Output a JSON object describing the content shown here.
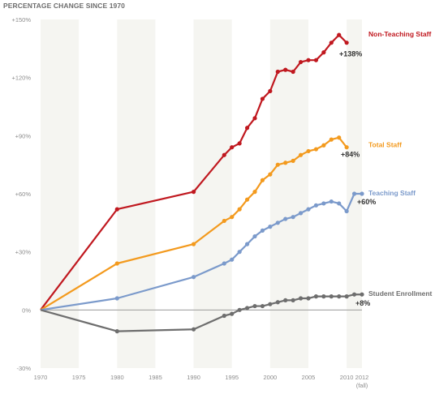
{
  "chart_data": {
    "type": "line",
    "title": "PERCENTAGE CHANGE SINCE 1970",
    "xlabel": "",
    "ylabel": "",
    "ylim": [
      -30,
      150
    ],
    "xlim": [
      1970,
      2012
    ],
    "grid": "alternating vertical bands every 5 years; zero line",
    "x_ticks": [
      "1970",
      "1975",
      "1980",
      "1985",
      "1990",
      "1995",
      "2000",
      "2005",
      "2010",
      "2012"
    ],
    "x_tick_note": "(fall)",
    "y_ticks": [
      "+150%",
      "+120%",
      "+90%",
      "+60%",
      "+30%",
      "0%",
      "-30%"
    ],
    "series": [
      {
        "name": "Non-Teaching Staff",
        "color": "#c0181f",
        "end_label": "+138%",
        "points": [
          [
            1970,
            0
          ],
          [
            1980,
            52
          ],
          [
            1990,
            61
          ],
          [
            1994,
            80
          ],
          [
            1995,
            84
          ],
          [
            1996,
            86
          ],
          [
            1997,
            94
          ],
          [
            1998,
            99
          ],
          [
            1999,
            109
          ],
          [
            2000,
            113
          ],
          [
            2001,
            123
          ],
          [
            2002,
            124
          ],
          [
            2003,
            123
          ],
          [
            2004,
            128
          ],
          [
            2005,
            129
          ],
          [
            2006,
            129
          ],
          [
            2007,
            133
          ],
          [
            2008,
            138
          ],
          [
            2009,
            142
          ],
          [
            2010,
            138
          ]
        ]
      },
      {
        "name": "Total Staff",
        "color": "#f39a1e",
        "end_label": "+84%",
        "points": [
          [
            1970,
            0
          ],
          [
            1980,
            24
          ],
          [
            1990,
            34
          ],
          [
            1994,
            46
          ],
          [
            1995,
            48
          ],
          [
            1996,
            52
          ],
          [
            1997,
            57
          ],
          [
            1998,
            61
          ],
          [
            1999,
            67
          ],
          [
            2000,
            70
          ],
          [
            2001,
            75
          ],
          [
            2002,
            76
          ],
          [
            2003,
            77
          ],
          [
            2004,
            80
          ],
          [
            2005,
            82
          ],
          [
            2006,
            83
          ],
          [
            2007,
            85
          ],
          [
            2008,
            88
          ],
          [
            2009,
            89
          ],
          [
            2010,
            84
          ]
        ]
      },
      {
        "name": "Teaching Staff",
        "color": "#7b9acb",
        "end_label": "+60%",
        "points": [
          [
            1970,
            0
          ],
          [
            1980,
            6
          ],
          [
            1990,
            17
          ],
          [
            1994,
            24
          ],
          [
            1995,
            26
          ],
          [
            1996,
            30
          ],
          [
            1997,
            34
          ],
          [
            1998,
            38
          ],
          [
            1999,
            41
          ],
          [
            2000,
            43
          ],
          [
            2001,
            45
          ],
          [
            2002,
            47
          ],
          [
            2003,
            48
          ],
          [
            2004,
            50
          ],
          [
            2005,
            52
          ],
          [
            2006,
            54
          ],
          [
            2007,
            55
          ],
          [
            2008,
            56
          ],
          [
            2009,
            55
          ],
          [
            2010,
            51
          ],
          [
            2011,
            60
          ],
          [
            2012,
            60
          ]
        ]
      },
      {
        "name": "Student Enrollment",
        "color": "#6e6e6e",
        "end_label": "+8%",
        "points": [
          [
            1970,
            0
          ],
          [
            1980,
            -11
          ],
          [
            1990,
            -10
          ],
          [
            1994,
            -3
          ],
          [
            1995,
            -2
          ],
          [
            1996,
            0
          ],
          [
            1997,
            1
          ],
          [
            1998,
            2
          ],
          [
            1999,
            2
          ],
          [
            2000,
            3
          ],
          [
            2001,
            4
          ],
          [
            2002,
            5
          ],
          [
            2003,
            5
          ],
          [
            2004,
            6
          ],
          [
            2005,
            6
          ],
          [
            2006,
            7
          ],
          [
            2007,
            7
          ],
          [
            2008,
            7
          ],
          [
            2009,
            7
          ],
          [
            2010,
            7
          ],
          [
            2011,
            8
          ],
          [
            2012,
            8
          ]
        ]
      }
    ]
  }
}
